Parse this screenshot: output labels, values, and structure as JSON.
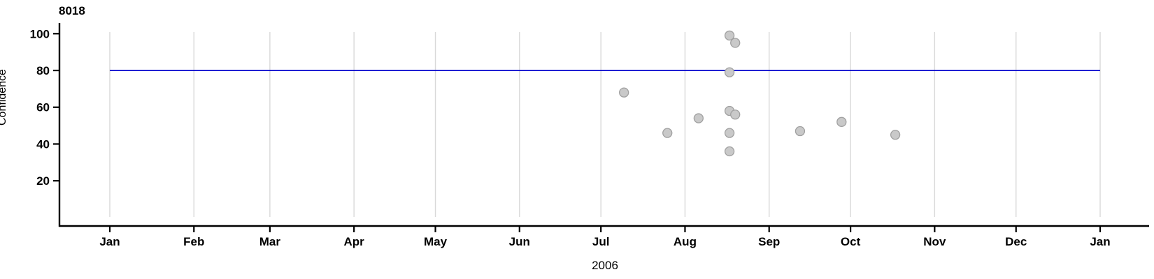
{
  "chart": {
    "title": "8018",
    "ylabel": "Confidence",
    "xlabel": "2006",
    "colors": {
      "reference_line": "#0000cc",
      "point_fill": "#c9c9c9",
      "point_stroke": "#a0a0a0",
      "gridline": "#d8d8d8",
      "axis": "#000000",
      "text": "#000000"
    }
  },
  "chart_data": {
    "type": "scatter",
    "title": "8018",
    "xlabel": "2006",
    "ylabel": "Confidence",
    "x_axis": {
      "unit": "time (months of 2006 through Jan 2007)",
      "tick_labels": [
        "Jan",
        "Feb",
        "Mar",
        "Apr",
        "May",
        "Jun",
        "Jul",
        "Aug",
        "Sep",
        "Oct",
        "Nov",
        "Dec",
        "Jan"
      ],
      "tick_day_of_year": [
        0,
        31,
        59,
        90,
        120,
        151,
        181,
        212,
        243,
        273,
        304,
        334,
        365
      ],
      "range_days": [
        0,
        365
      ],
      "grid": "vertical gridlines at each month"
    },
    "y_axis": {
      "tick_labels": [
        "20",
        "40",
        "60",
        "80",
        "100"
      ],
      "ticks": [
        20,
        40,
        60,
        80,
        100
      ],
      "range": [
        0,
        106
      ]
    },
    "reference_line": {
      "y": 80,
      "span_days": [
        0,
        365
      ],
      "color": "#0000cc"
    },
    "legend": "none",
    "points": [
      {
        "date": "Jul 9",
        "day_of_year": 189.5,
        "confidence": 68
      },
      {
        "date": "Jul 25",
        "day_of_year": 205.5,
        "confidence": 46
      },
      {
        "date": "Aug 6",
        "day_of_year": 217.0,
        "confidence": 54
      },
      {
        "date": "Aug 17",
        "day_of_year": 228.4,
        "confidence": 99
      },
      {
        "date": "Aug 17",
        "day_of_year": 228.4,
        "confidence": 79
      },
      {
        "date": "Aug 17",
        "day_of_year": 228.4,
        "confidence": 58
      },
      {
        "date": "Aug 17",
        "day_of_year": 228.4,
        "confidence": 46
      },
      {
        "date": "Aug 17",
        "day_of_year": 228.4,
        "confidence": 36
      },
      {
        "date": "Aug 19",
        "day_of_year": 230.5,
        "confidence": 95
      },
      {
        "date": "Aug 19",
        "day_of_year": 230.5,
        "confidence": 56
      },
      {
        "date": "Sep 12",
        "day_of_year": 254.4,
        "confidence": 47
      },
      {
        "date": "Sep 27",
        "day_of_year": 269.7,
        "confidence": 52
      },
      {
        "date": "Oct 17",
        "day_of_year": 289.5,
        "confidence": 45
      }
    ]
  }
}
